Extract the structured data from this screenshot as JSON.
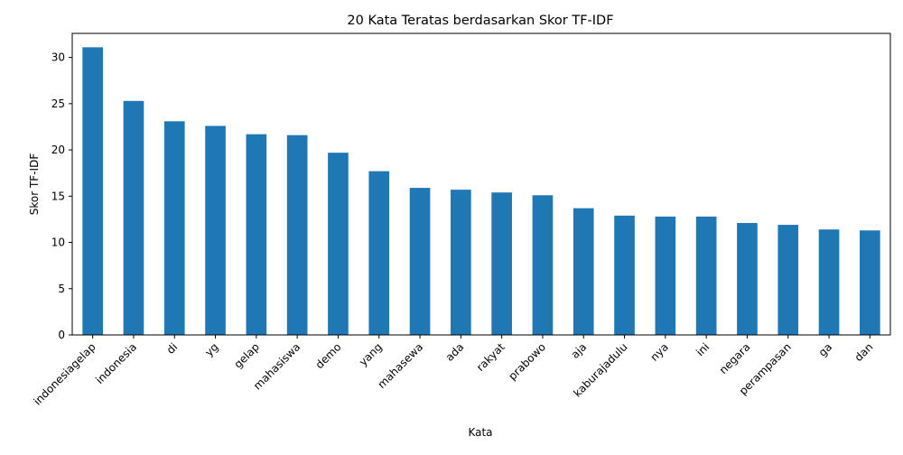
{
  "chart_data": {
    "type": "bar",
    "title": "20 Kata Teratas berdasarkan Skor TF-IDF",
    "xlabel": "Kata",
    "ylabel": "Skor TF-IDF",
    "ylim": [
      0,
      32.6
    ],
    "yticks": [
      0,
      5,
      10,
      15,
      20,
      25,
      30
    ],
    "grid": false,
    "legend": "none",
    "bar_color": "#1f77b4",
    "categories": [
      "indonesiagelap",
      "indonesia",
      "di",
      "yg",
      "gelap",
      "mahasiswa",
      "demo",
      "yang",
      "mahasewa",
      "ada",
      "rakyat",
      "prabowo",
      "aja",
      "kaburajadulu",
      "nya",
      "ini",
      "negara",
      "perampasan",
      "ga",
      "dan"
    ],
    "values": [
      31.1,
      25.3,
      23.1,
      22.6,
      21.7,
      21.6,
      19.7,
      17.7,
      15.9,
      15.7,
      15.4,
      15.1,
      13.7,
      12.9,
      12.8,
      12.8,
      12.1,
      11.9,
      11.4,
      11.3
    ]
  }
}
